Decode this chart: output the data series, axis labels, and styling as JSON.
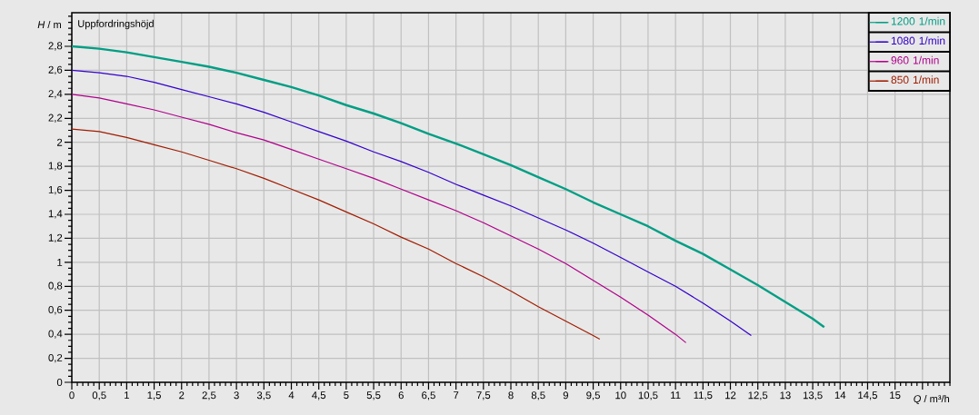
{
  "chart_data": {
    "type": "line",
    "title": "Uppfordringshöjd",
    "xlabel": "*Q* / m³/h",
    "ylabel": "*H* / m",
    "xlim": [
      0,
      16
    ],
    "ylim": [
      0,
      3.08
    ],
    "xticks": [
      0,
      {
        "value": 0.5,
        "label": "0,5"
      },
      1,
      {
        "value": 1.5,
        "label": "1,5"
      },
      2,
      {
        "value": 2.5,
        "label": "2,5"
      },
      3,
      {
        "value": 3.5,
        "label": "3,5"
      },
      4,
      {
        "value": 4.5,
        "label": "4,5"
      },
      5,
      {
        "value": 5.5,
        "label": "5,5"
      },
      6,
      {
        "value": 6.5,
        "label": "6,5"
      },
      7,
      {
        "value": 7.5,
        "label": "7,5"
      },
      8,
      {
        "value": 8.5,
        "label": "8,5"
      },
      9,
      {
        "value": 9.5,
        "label": "9,5"
      },
      10,
      {
        "value": 10.5,
        "label": "10,5"
      },
      11,
      {
        "value": 11.5,
        "label": "11,5"
      },
      12,
      {
        "value": 12.5,
        "label": "12,5"
      },
      13,
      {
        "value": 13.5,
        "label": "13,5"
      },
      14,
      {
        "value": 14.5,
        "label": "14,5"
      },
      15,
      {
        "value": 15.5,
        "label": null
      }
    ],
    "yticks": [
      0,
      {
        "value": 0.2,
        "label": "0,2"
      },
      {
        "value": 0.4,
        "label": "0,4"
      },
      {
        "value": 0.6,
        "label": "0,6"
      },
      {
        "value": 0.8,
        "label": "0,8"
      },
      1,
      {
        "value": 1.2,
        "label": "1,2"
      },
      {
        "value": 1.4,
        "label": "1,4"
      },
      {
        "value": 1.6,
        "label": "1,6"
      },
      {
        "value": 1.8,
        "label": "1,8"
      },
      2,
      {
        "value": 2.2,
        "label": "2,2"
      },
      {
        "value": 2.4,
        "label": "2,4"
      },
      {
        "value": 2.6,
        "label": "2,6"
      },
      {
        "value": 2.8,
        "label": "2,8"
      }
    ],
    "grid": true,
    "legend": "top right",
    "series": [
      {
        "name": "1200 1/min",
        "color": "#009e84",
        "x": [
          0,
          0.5,
          1,
          1.5,
          2,
          2.5,
          3,
          3.5,
          4,
          4.5,
          5,
          5.5,
          6,
          6.5,
          7,
          7.5,
          8,
          8.5,
          9,
          9.5,
          10,
          10.5,
          11,
          11.5,
          12,
          12.5,
          13,
          13.5,
          13.71
        ],
        "values": [
          2.8,
          2.78,
          2.75,
          2.71,
          2.67,
          2.63,
          2.58,
          2.52,
          2.46,
          2.39,
          2.31,
          2.24,
          2.16,
          2.07,
          1.99,
          1.9,
          1.81,
          1.71,
          1.61,
          1.5,
          1.4,
          1.3,
          1.18,
          1.07,
          0.94,
          0.81,
          0.67,
          0.53,
          0.46
        ]
      },
      {
        "name": "1080 1/min",
        "color": "#3300cc",
        "x": [
          0,
          0.5,
          1,
          1.5,
          2,
          2.5,
          3,
          3.5,
          4,
          4.5,
          5,
          5.5,
          6,
          6.5,
          7,
          7.5,
          8,
          8.5,
          9,
          9.5,
          10,
          10.5,
          11,
          11.5,
          12,
          12.38
        ],
        "values": [
          2.6,
          2.58,
          2.55,
          2.5,
          2.44,
          2.38,
          2.32,
          2.25,
          2.17,
          2.09,
          2.01,
          1.92,
          1.84,
          1.75,
          1.65,
          1.56,
          1.47,
          1.37,
          1.27,
          1.16,
          1.04,
          0.92,
          0.8,
          0.66,
          0.51,
          0.39
        ]
      },
      {
        "name": "960 1/min",
        "color": "#b0008c",
        "x": [
          0,
          0.5,
          1,
          1.5,
          2,
          2.5,
          3,
          3.5,
          4,
          4.5,
          5,
          5.5,
          6,
          6.5,
          7,
          7.5,
          8,
          8.5,
          9,
          9.5,
          10,
          10.5,
          11,
          11.19
        ],
        "values": [
          2.4,
          2.37,
          2.32,
          2.27,
          2.21,
          2.15,
          2.08,
          2.02,
          1.94,
          1.86,
          1.78,
          1.7,
          1.61,
          1.52,
          1.43,
          1.33,
          1.22,
          1.11,
          0.99,
          0.85,
          0.71,
          0.56,
          0.4,
          0.33
        ]
      },
      {
        "name": "850 1/min",
        "color": "#a01c00",
        "x": [
          0,
          0.5,
          1,
          1.5,
          2,
          2.5,
          3,
          3.5,
          4,
          4.5,
          5,
          5.5,
          6,
          6.5,
          7,
          7.5,
          8,
          8.5,
          9,
          9.5,
          9.62
        ],
        "values": [
          2.11,
          2.09,
          2.04,
          1.98,
          1.92,
          1.85,
          1.78,
          1.7,
          1.61,
          1.52,
          1.42,
          1.32,
          1.21,
          1.11,
          0.99,
          0.88,
          0.76,
          0.63,
          0.51,
          0.39,
          0.36
        ]
      }
    ]
  }
}
